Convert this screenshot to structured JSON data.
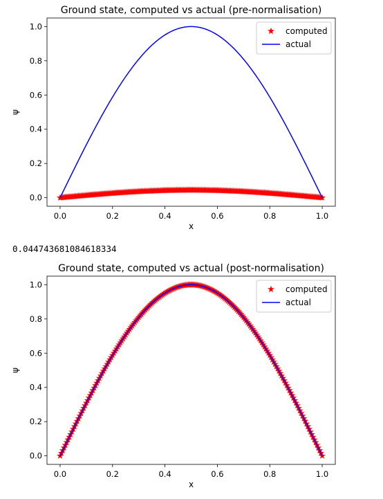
{
  "output_value": "0.044743681084618334",
  "chart_data": [
    {
      "type": "line",
      "title": "Ground state, computed vs actual (pre-normalisation)",
      "xlabel": "x",
      "ylabel": "ψ",
      "xlim": [
        -0.05,
        1.05
      ],
      "ylim": [
        -0.05,
        1.05
      ],
      "xticks": [
        "0.0",
        "0.2",
        "0.4",
        "0.6",
        "0.8",
        "1.0"
      ],
      "yticks": [
        "0.0",
        "0.2",
        "0.4",
        "0.6",
        "0.8",
        "1.0"
      ],
      "grid": false,
      "legend": "top-right",
      "series": [
        {
          "name": "computed",
          "style": "star-markers",
          "color": "#ff0000",
          "function": "0.044743681084618334*sin(pi*x)",
          "x_range": [
            0,
            1
          ],
          "amplitude": 0.0447
        },
        {
          "name": "actual",
          "style": "line",
          "color": "#0000ff",
          "function": "sin(pi*x)",
          "x_range": [
            0,
            1
          ],
          "amplitude": 1.0
        }
      ]
    },
    {
      "type": "line",
      "title": "Ground state, computed vs actual (post-normalisation)",
      "xlabel": "x",
      "ylabel": "ψ",
      "xlim": [
        -0.05,
        1.05
      ],
      "ylim": [
        -0.05,
        1.05
      ],
      "xticks": [
        "0.0",
        "0.2",
        "0.4",
        "0.6",
        "0.8",
        "1.0"
      ],
      "yticks": [
        "0.0",
        "0.2",
        "0.4",
        "0.6",
        "0.8",
        "1.0"
      ],
      "grid": false,
      "legend": "top-right",
      "series": [
        {
          "name": "computed",
          "style": "star-markers",
          "color": "#ff0000",
          "function": "sin(pi*x)",
          "x_range": [
            0,
            1
          ],
          "amplitude": 1.0
        },
        {
          "name": "actual",
          "style": "line",
          "color": "#0000ff",
          "function": "sin(pi*x)",
          "x_range": [
            0,
            1
          ],
          "amplitude": 1.0
        }
      ]
    }
  ]
}
